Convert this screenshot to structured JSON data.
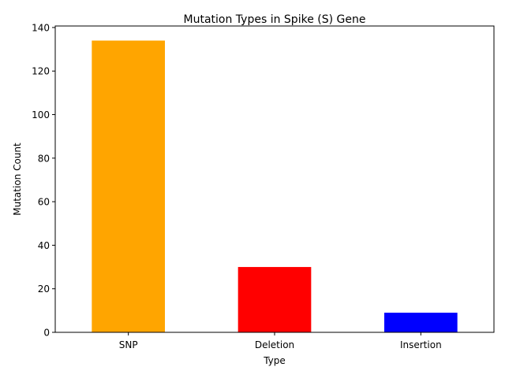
{
  "chart_data": {
    "type": "bar",
    "title": "Mutation Types in Spike (S) Gene",
    "xlabel": "Type",
    "ylabel": "Mutation Count",
    "categories": [
      "SNP",
      "Deletion",
      "Insertion"
    ],
    "values": [
      134,
      30,
      9
    ],
    "colors": [
      "#FFA500",
      "#FF0000",
      "#0000FF"
    ],
    "ylim": [
      0,
      140.7
    ],
    "yticks": [
      0,
      20,
      40,
      60,
      80,
      100,
      120,
      140
    ],
    "grid": false,
    "legend": "none"
  }
}
